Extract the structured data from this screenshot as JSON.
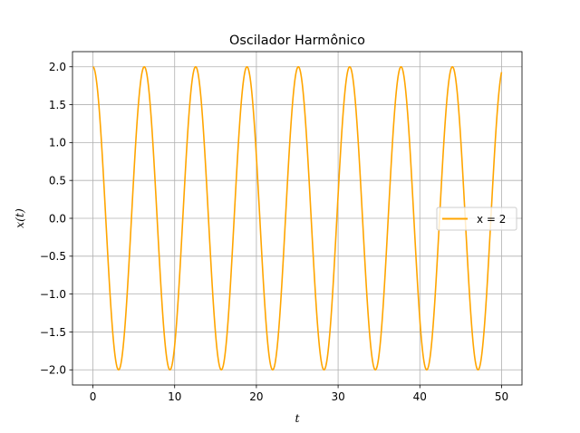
{
  "chart_data": {
    "type": "line",
    "title": "Oscilador Harmônico",
    "xlabel": "t",
    "ylabel": "x(t)",
    "xlim": [
      -2.5,
      52.5
    ],
    "ylim": [
      -2.2,
      2.2
    ],
    "xticks": [
      0,
      10,
      20,
      30,
      40,
      50
    ],
    "xtick_labels": [
      "0",
      "10",
      "20",
      "30",
      "40",
      "50"
    ],
    "yticks": [
      -2.0,
      -1.5,
      -1.0,
      -0.5,
      0.0,
      0.5,
      1.0,
      1.5,
      2.0
    ],
    "ytick_labels": [
      "−2.0",
      "−1.5",
      "−1.0",
      "−0.5",
      "0.0",
      "0.5",
      "1.0",
      "1.5",
      "2.0"
    ],
    "grid": true,
    "legend_position": "center-right",
    "series": [
      {
        "name": "x = 2",
        "color": "#ffa500",
        "function": "2*cos(t)",
        "t_range": [
          0,
          50
        ],
        "peaks_t": [
          0,
          6.28,
          12.57,
          18.85,
          25.13,
          31.42,
          37.7,
          43.98
        ],
        "troughs_t": [
          3.14,
          9.42,
          15.71,
          21.99,
          28.27,
          34.56,
          40.84,
          47.12
        ],
        "amplitude": 2.0,
        "end_value": 1.93
      }
    ]
  }
}
